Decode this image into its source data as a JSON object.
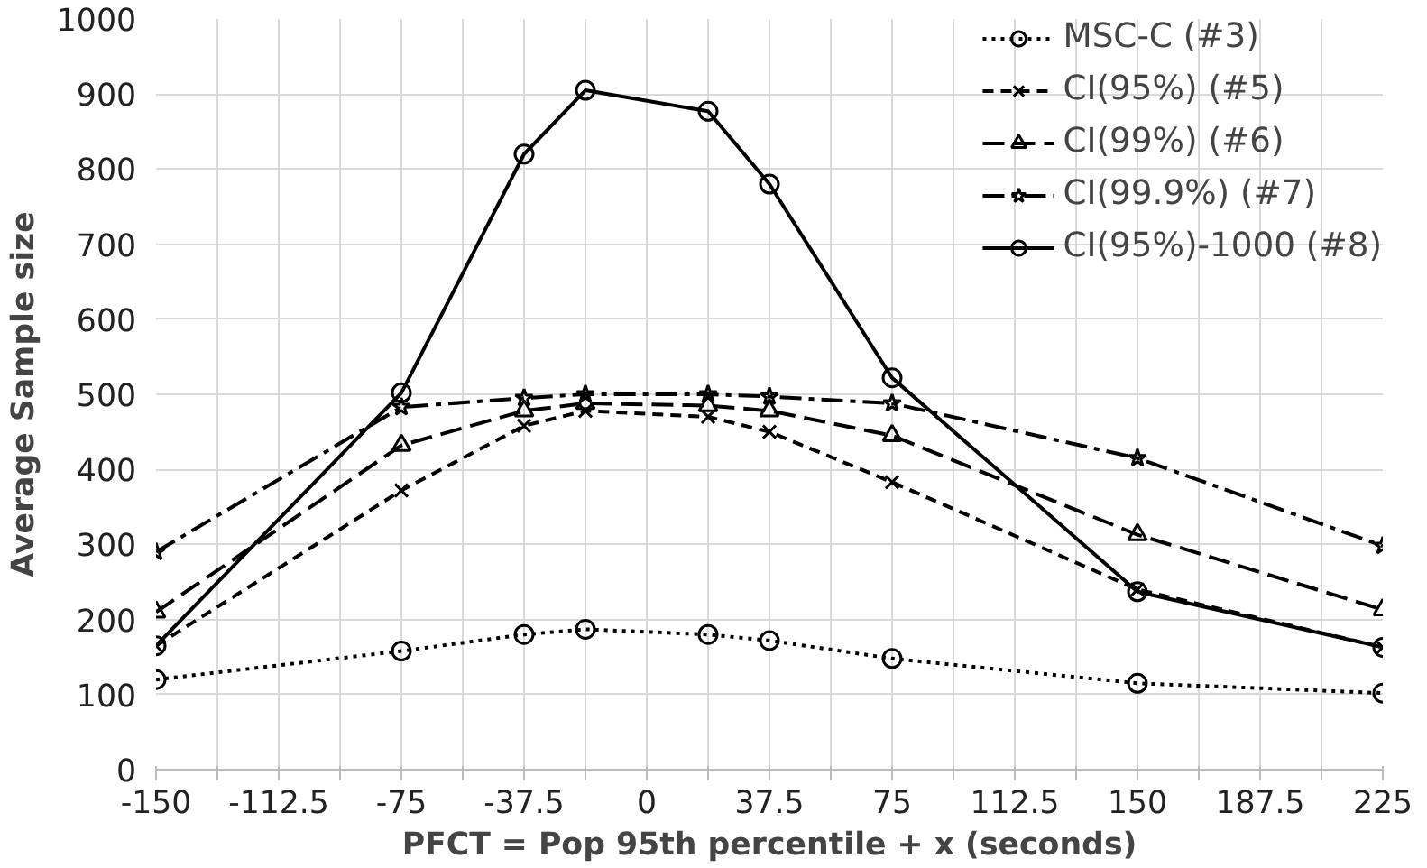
{
  "chart_data": {
    "type": "line",
    "xlabel": "PFCT = Pop 95th percentile + x (seconds)",
    "ylabel": "Average Sample size",
    "x": [
      -150,
      -75,
      -37.5,
      -18.75,
      18.75,
      37.5,
      75,
      150,
      225
    ],
    "xlim": [
      -150,
      225
    ],
    "ylim": [
      0,
      1000
    ],
    "xticks": [
      -150,
      {
        "value": -131.25,
        "label": null
      },
      -112.5,
      {
        "value": -93.75,
        "label": null
      },
      -75,
      {
        "value": -56.25,
        "label": null
      },
      -37.5,
      {
        "value": -18.75,
        "label": null
      },
      0,
      {
        "value": 18.75,
        "label": null
      },
      37.5,
      {
        "value": 56.25,
        "label": null
      },
      75,
      {
        "value": 93.75,
        "label": null
      },
      112.5,
      {
        "value": 131.25,
        "label": null
      },
      150,
      {
        "value": 168.75,
        "label": null
      },
      187.5,
      {
        "value": 206.25,
        "label": null
      },
      225
    ],
    "yticks": [
      0,
      100,
      200,
      300,
      400,
      500,
      600,
      700,
      800,
      900,
      1000
    ],
    "grid": true,
    "legend": "top right",
    "series": [
      {
        "name": "MSC-C (#3)",
        "color": "#000000",
        "marker": "circle",
        "line_style": "dotted",
        "values": [
          120,
          158,
          180,
          187,
          180,
          172,
          148,
          115,
          102
        ]
      },
      {
        "name": "CI(95%) (#5)",
        "color": "#000000",
        "marker": "cross",
        "line_style": "dashed",
        "values": [
          165,
          372,
          458,
          478,
          470,
          450,
          383,
          240,
          163
        ]
      },
      {
        "name": "CI(99%) (#6)",
        "color": "#000000",
        "marker": "triangle",
        "line_style": "longdash",
        "values": [
          210,
          432,
          478,
          488,
          485,
          478,
          445,
          313,
          213
        ]
      },
      {
        "name": "CI(99.9%) (#7)",
        "color": "#000000",
        "marker": "star",
        "line_style": "dashdot",
        "values": [
          290,
          483,
          495,
          500,
          500,
          497,
          488,
          415,
          298
        ]
      },
      {
        "name": "CI(95%)-1000 (#8)",
        "color": "#000000",
        "marker": "circle",
        "line_style": "solid",
        "values": [
          165,
          502,
          820,
          905,
          877,
          780,
          522,
          237,
          163
        ]
      }
    ]
  }
}
